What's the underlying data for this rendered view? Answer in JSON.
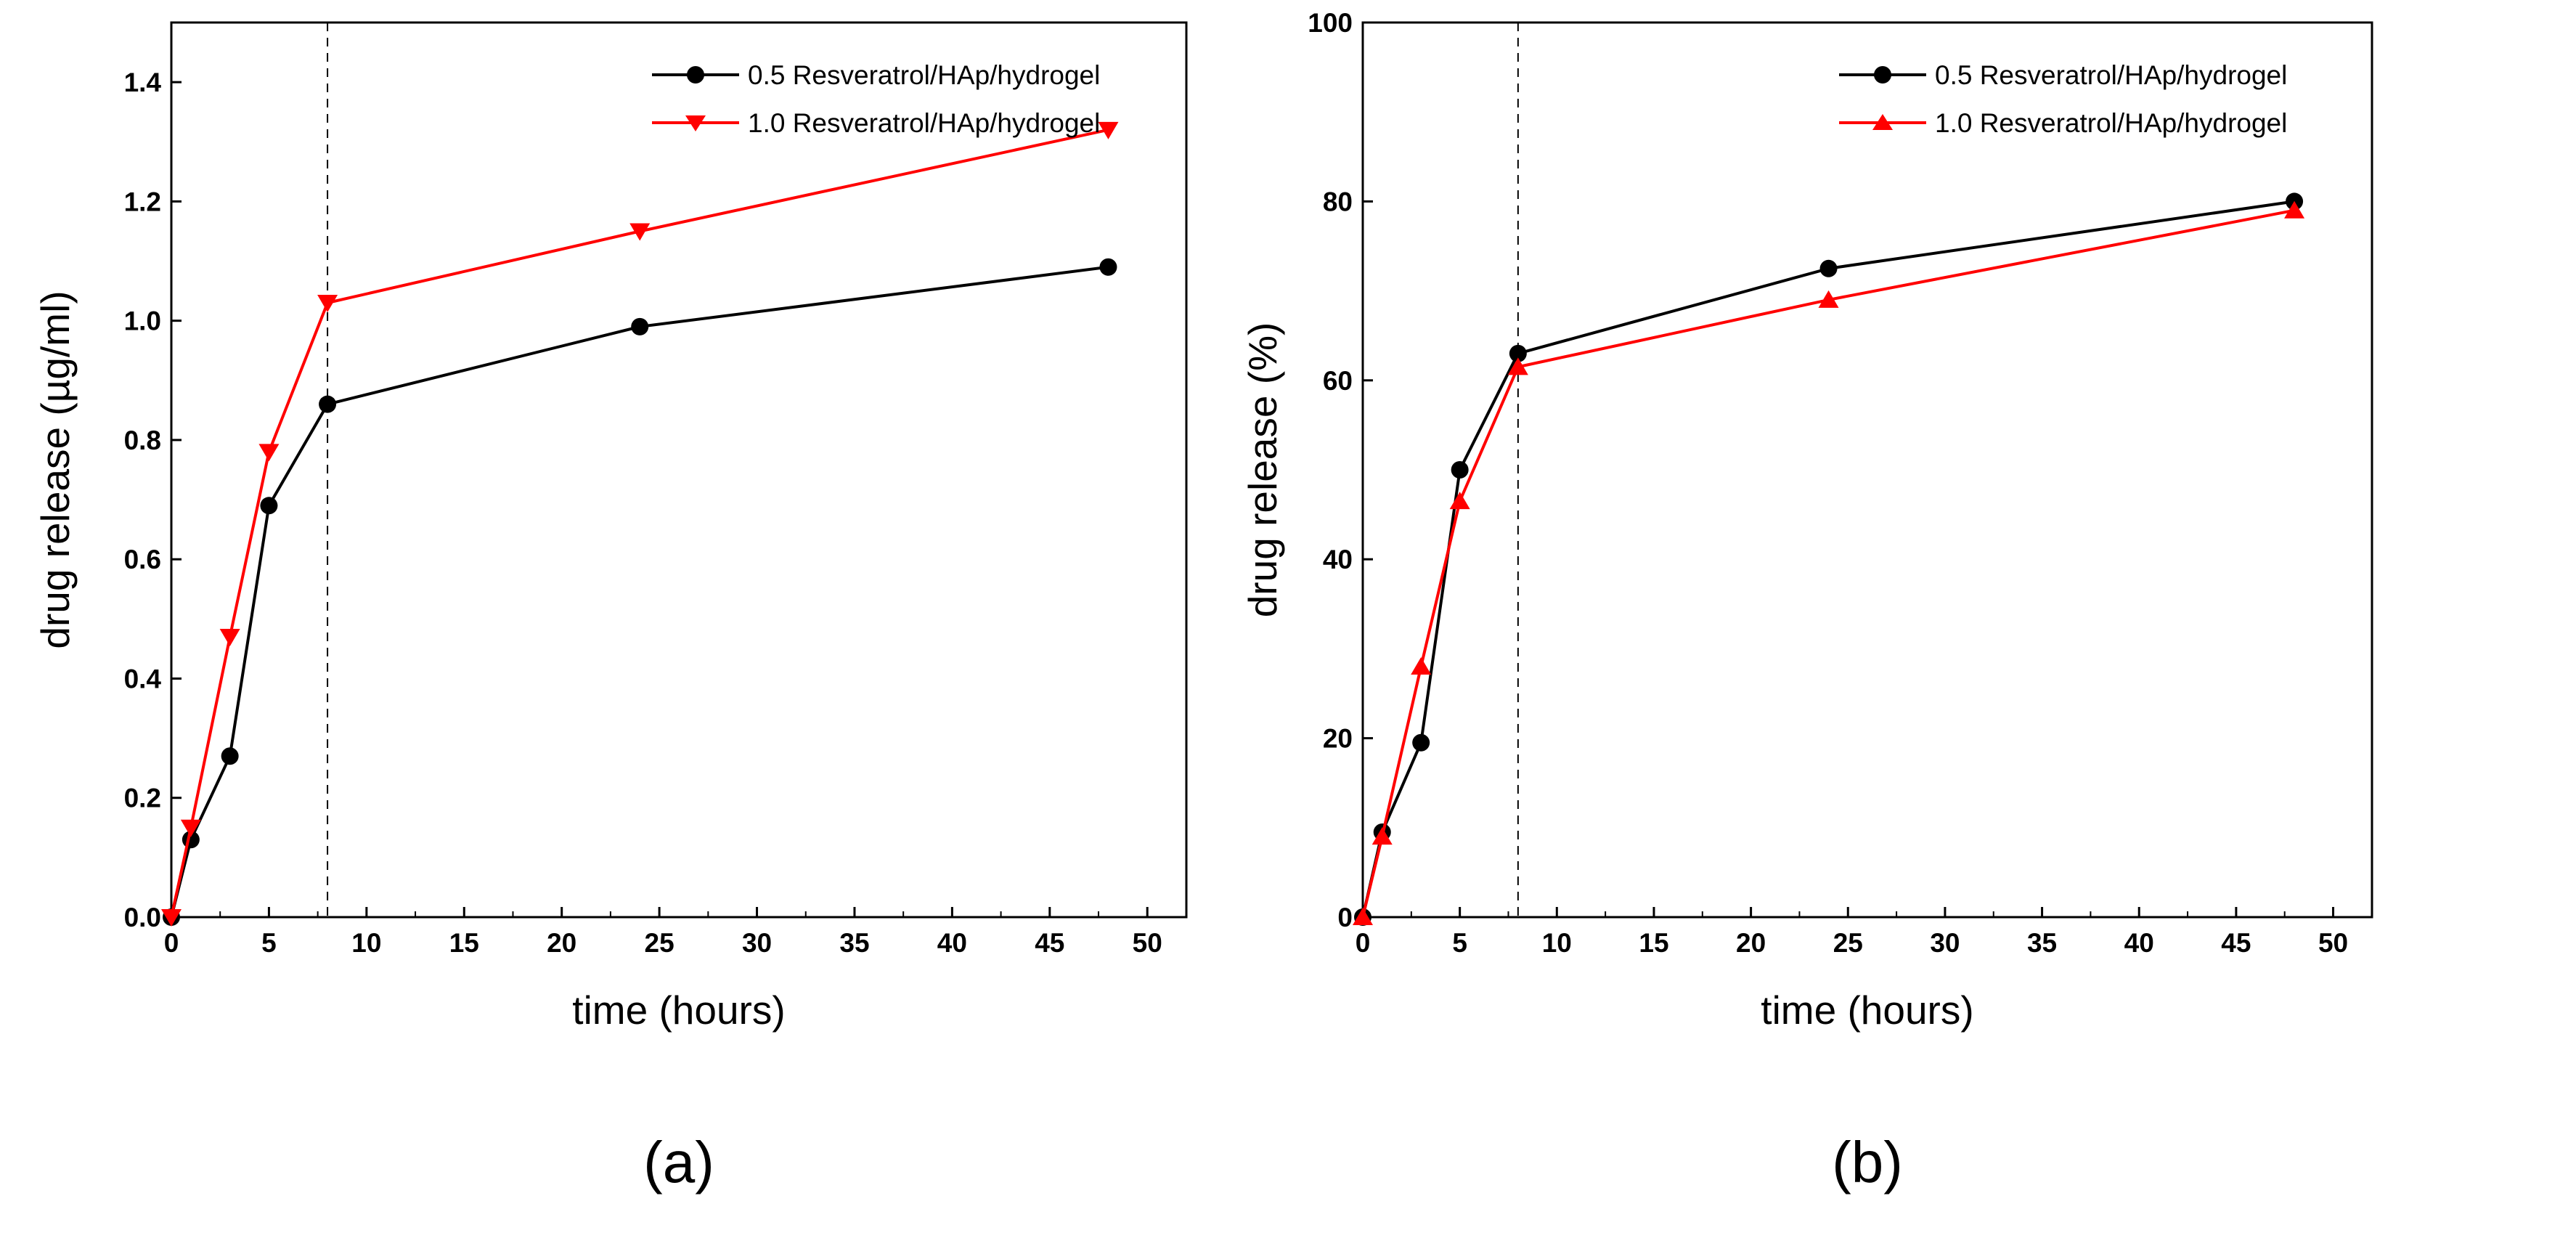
{
  "chart_data": [
    {
      "type": "line",
      "panel_label": "(a)",
      "xlabel": "time (hours)",
      "ylabel": "drug release (µg/ml)",
      "xlim": [
        0,
        52
      ],
      "ylim": [
        0,
        1.5
      ],
      "xticks": [
        0,
        5,
        10,
        15,
        20,
        25,
        30,
        35,
        40,
        45,
        50
      ],
      "yticks": [
        0.0,
        0.2,
        0.4,
        0.6,
        0.8,
        1.0,
        1.2,
        1.4
      ],
      "ytick_labels": [
        "0.0",
        "0.2",
        "0.4",
        "0.6",
        "0.8",
        "1.0",
        "1.2",
        "1.4"
      ],
      "xtick_labels": [
        "0",
        "5",
        "10",
        "15",
        "20",
        "25",
        "30",
        "35",
        "40",
        "45",
        "50"
      ],
      "vline_x": 8,
      "legend_position": "top-right",
      "series": [
        {
          "name": "0.5 Resveratrol/HAp/hydrogel",
          "color": "#000000",
          "marker": "circle",
          "x": [
            0,
            1,
            3,
            5,
            8,
            24,
            48
          ],
          "y": [
            0.0,
            0.13,
            0.27,
            0.69,
            0.86,
            0.99,
            1.09
          ]
        },
        {
          "name": "1.0 Resveratrol/HAp/hydrogel",
          "color": "#ff0000",
          "marker": "triangle-down",
          "x": [
            0,
            1,
            3,
            5,
            8,
            24,
            48
          ],
          "y": [
            0.0,
            0.15,
            0.47,
            0.78,
            1.03,
            1.15,
            1.32
          ]
        }
      ]
    },
    {
      "type": "line",
      "panel_label": "(b)",
      "xlabel": "time (hours)",
      "ylabel": "drug release (%)",
      "xlim": [
        0,
        52
      ],
      "ylim": [
        0,
        100
      ],
      "xticks": [
        0,
        5,
        10,
        15,
        20,
        25,
        30,
        35,
        40,
        45,
        50
      ],
      "yticks": [
        0,
        20,
        40,
        60,
        80,
        100
      ],
      "ytick_labels": [
        "0",
        "20",
        "40",
        "60",
        "80",
        "100"
      ],
      "xtick_labels": [
        "0",
        "5",
        "10",
        "15",
        "20",
        "25",
        "30",
        "35",
        "40",
        "45",
        "50"
      ],
      "vline_x": 8,
      "legend_position": "top-right",
      "series": [
        {
          "name": "0.5 Resveratrol/HAp/hydrogel",
          "color": "#000000",
          "marker": "circle",
          "x": [
            0,
            1,
            3,
            5,
            8,
            24,
            48
          ],
          "y": [
            0,
            9.5,
            19.5,
            50,
            63,
            72.5,
            80
          ]
        },
        {
          "name": "1.0 Resveratrol/HAp/hydrogel",
          "color": "#ff0000",
          "marker": "triangle-up",
          "x": [
            0,
            1,
            3,
            5,
            8,
            24,
            48
          ],
          "y": [
            0,
            9,
            28,
            46.5,
            61.5,
            69,
            79
          ]
        }
      ]
    }
  ]
}
